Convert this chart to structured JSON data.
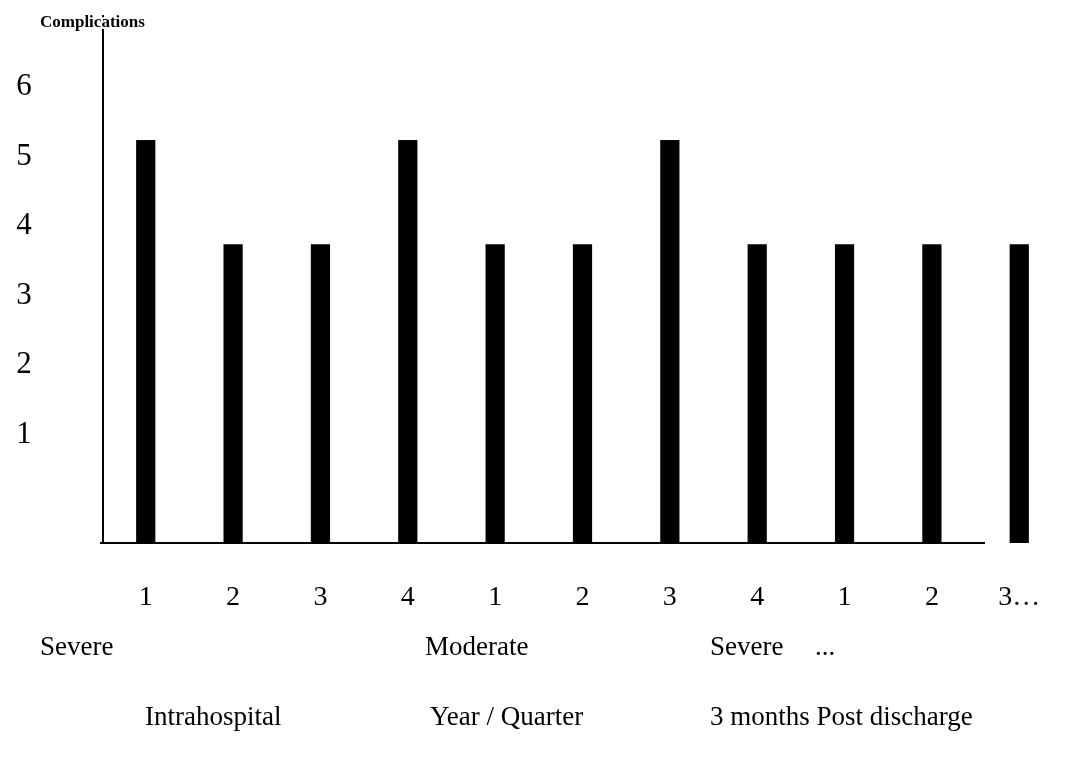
{
  "chart_data": {
    "type": "bar",
    "ylabel": "Complications",
    "categories": [
      "1",
      "2",
      "3",
      "4",
      "1",
      "2",
      "3",
      "4",
      "1",
      "2",
      "3…"
    ],
    "values": [
      5.8,
      4.3,
      4.3,
      5.8,
      4.3,
      4.3,
      5.8,
      4.3,
      4.3,
      4.3,
      4.3
    ],
    "base": [
      -0.6,
      -0.6,
      -0.6,
      -0.6,
      -0.6,
      -0.6,
      -0.6,
      -0.6,
      -0.6,
      -0.6,
      -0.6
    ],
    "color": "#000000",
    "ylim": [
      -0.6,
      7.0
    ],
    "yticks": [
      1,
      2,
      3,
      4,
      5,
      6
    ],
    "grid": false,
    "annotations": [
      "Severe",
      "Moderate",
      "Severe",
      "...",
      "Intrahospital",
      "Year / Quarter",
      "3 months Post discharge"
    ]
  }
}
